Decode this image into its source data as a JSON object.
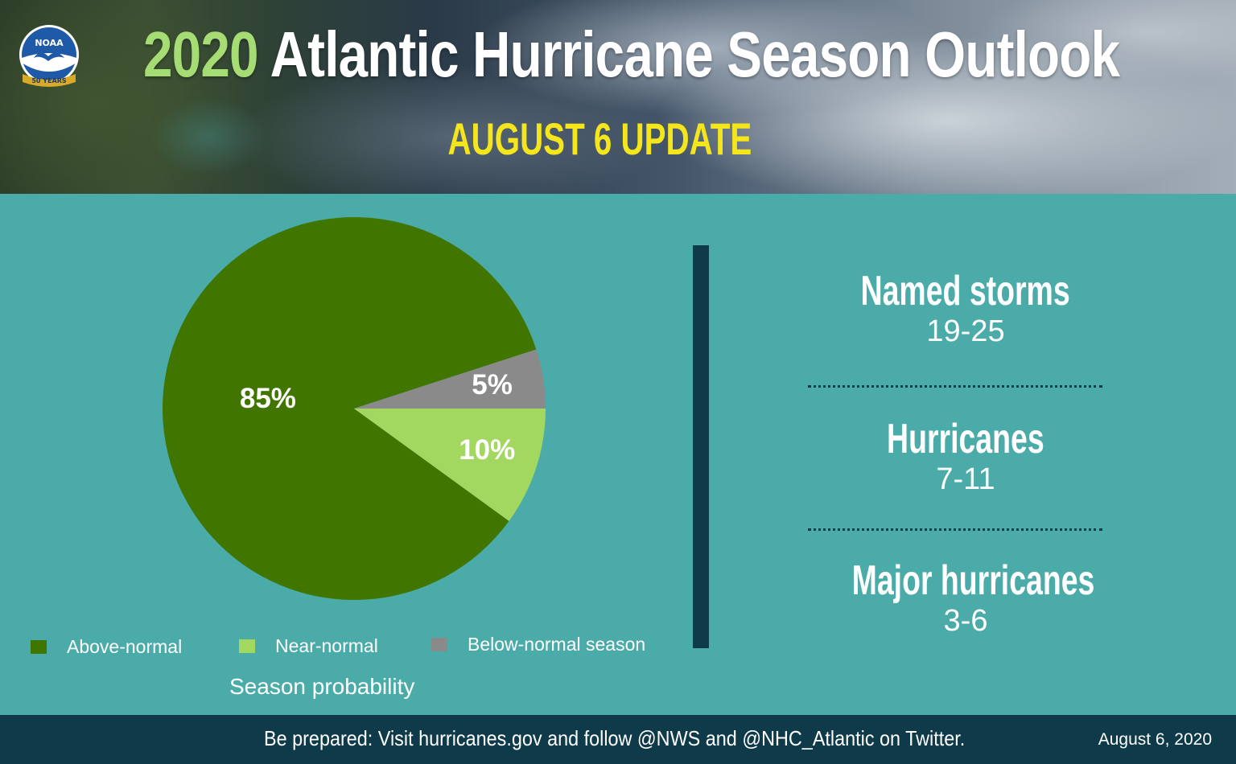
{
  "header": {
    "logo_text": "NOAA",
    "logo_badge": "50 YEARS",
    "title_year": "2020",
    "title_rest": "Atlantic Hurricane Season Outlook",
    "subtitle": "AUGUST 6 UPDATE"
  },
  "colors": {
    "above_normal": "#407600",
    "near_normal": "#a2d860",
    "below_normal": "#8a8a8a",
    "background": "#4aaba9",
    "footer_bg": "#0e3a4a",
    "title_accent": "#a6dc74",
    "subtitle": "#f4e51c"
  },
  "chart_data": {
    "type": "pie",
    "slices": [
      {
        "label": "Above-normal",
        "value": 85,
        "display": "85%"
      },
      {
        "label": "Near-normal",
        "value": 10,
        "display": "10%"
      },
      {
        "label": "Below-normal season",
        "value": 5,
        "display": "5%"
      }
    ],
    "legend_position": "bottom",
    "caption": "Season probability"
  },
  "stats": [
    {
      "label": "Named storms",
      "value": "19-25"
    },
    {
      "label": "Hurricanes",
      "value": "7-11"
    },
    {
      "label": "Major hurricanes",
      "value": "3-6"
    }
  ],
  "footer": {
    "message": "Be prepared: Visit hurricanes.gov and follow @NWS and @NHC_Atlantic on Twitter.",
    "date": "August 6, 2020"
  }
}
